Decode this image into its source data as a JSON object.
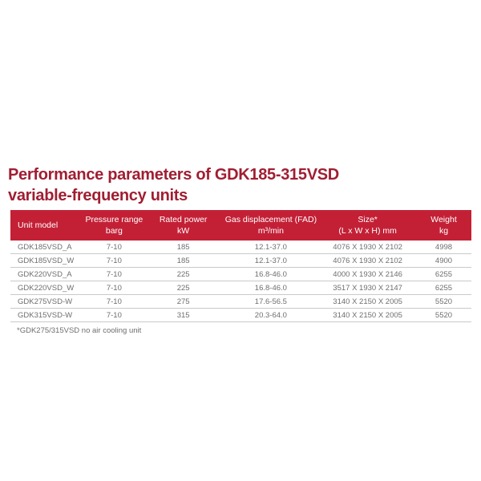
{
  "colors": {
    "title_color": "#A01E32",
    "header_bg": "#C32036",
    "header_text": "#FFFFFF",
    "row_text": "#6D6E71",
    "divider": "#C8C9CB"
  },
  "title": {
    "line1": "Performance parameters of GDK185-315VSD",
    "line2": "variable-frequency units"
  },
  "table": {
    "columns": [
      {
        "label": "Unit model",
        "sub": ""
      },
      {
        "label": "Pressure range",
        "sub": "barg"
      },
      {
        "label": "Rated power",
        "sub": "kW"
      },
      {
        "label": "Gas displacement (FAD)",
        "sub": "m³/min"
      },
      {
        "label": "Size*",
        "sub": "(L x W x H) mm"
      },
      {
        "label": "Weight",
        "sub": "kg"
      }
    ],
    "rows": [
      [
        "GDK185VSD_A",
        "7-10",
        "185",
        "12.1-37.0",
        "4076 X 1930 X 2102",
        "4998"
      ],
      [
        "GDK185VSD_W",
        "7-10",
        "185",
        "12.1-37.0",
        "4076 X 1930 X 2102",
        "4900"
      ],
      [
        "GDK220VSD_A",
        "7-10",
        "225",
        "16.8-46.0",
        "4000 X 1930 X 2146",
        "6255"
      ],
      [
        "GDK220VSD_W",
        "7-10",
        "225",
        "16.8-46.0",
        "3517 X 1930 X 2147",
        "6255"
      ],
      [
        "GDK275VSD-W",
        "7-10",
        "275",
        "17.6-56.5",
        "3140 X 2150 X 2005",
        "5520"
      ],
      [
        "GDK315VSD-W",
        "7-10",
        "315",
        "20.3-64.0",
        "3140 X 2150 X 2005",
        "5520"
      ]
    ],
    "footnote": "*GDK275/315VSD no air cooling unit"
  }
}
